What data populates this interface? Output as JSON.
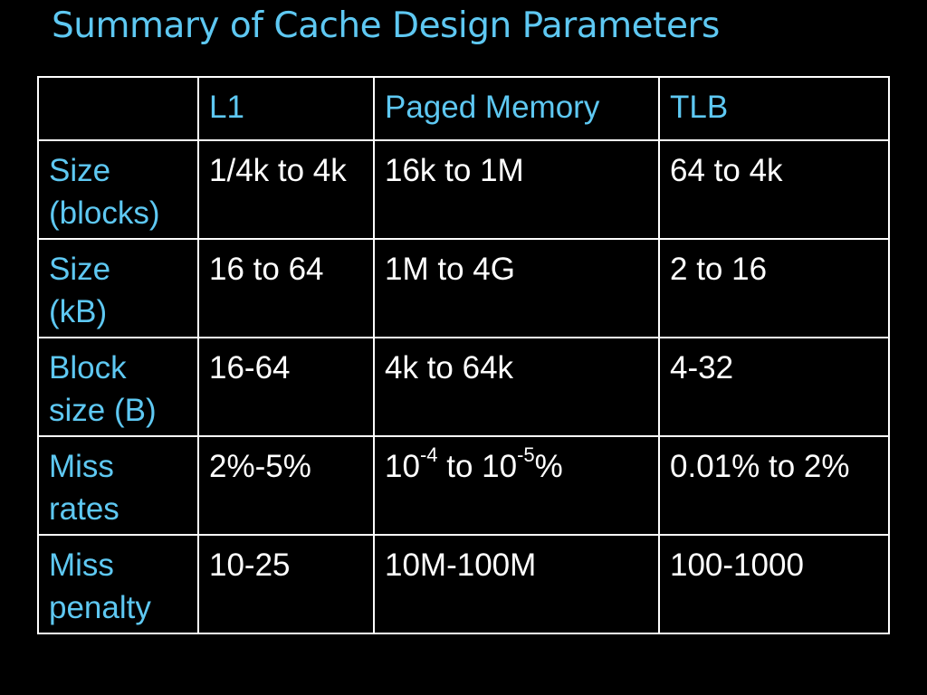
{
  "slide": {
    "title": "Summary of Cache Design Parameters"
  },
  "colors": {
    "background": "#000000",
    "accent": "#5EC8F2",
    "text": "#FFFFFF",
    "grid": "#FFFFFF"
  },
  "table": {
    "headers": [
      "",
      "L1",
      "Paged Memory",
      "TLB"
    ],
    "rows": [
      {
        "label_lines": [
          "Size",
          "(blocks)"
        ],
        "l1": "1/4k to 4k",
        "paged": "16k to 1M",
        "tlb": "64 to 4k"
      },
      {
        "label_lines": [
          "Size",
          "(kB)"
        ],
        "l1": "16 to 64",
        "paged": "1M to 4G",
        "tlb": "2 to 16"
      },
      {
        "label_lines": [
          "Block",
          "size (B)"
        ],
        "l1": "16-64",
        "paged": "4k to 64k",
        "tlb": "4-32"
      },
      {
        "label_lines": [
          "Miss",
          "rates"
        ],
        "l1": "2%-5%",
        "paged_parts": {
          "base1": "10",
          "exp1": "-4",
          "mid": " to 10",
          "exp2": "-5",
          "suffix": "%"
        },
        "tlb": "0.01% to 2%"
      },
      {
        "label_lines": [
          "Miss",
          "penalty"
        ],
        "l1": "10-25",
        "paged": "10M-100M",
        "tlb": "100-1000"
      }
    ]
  }
}
